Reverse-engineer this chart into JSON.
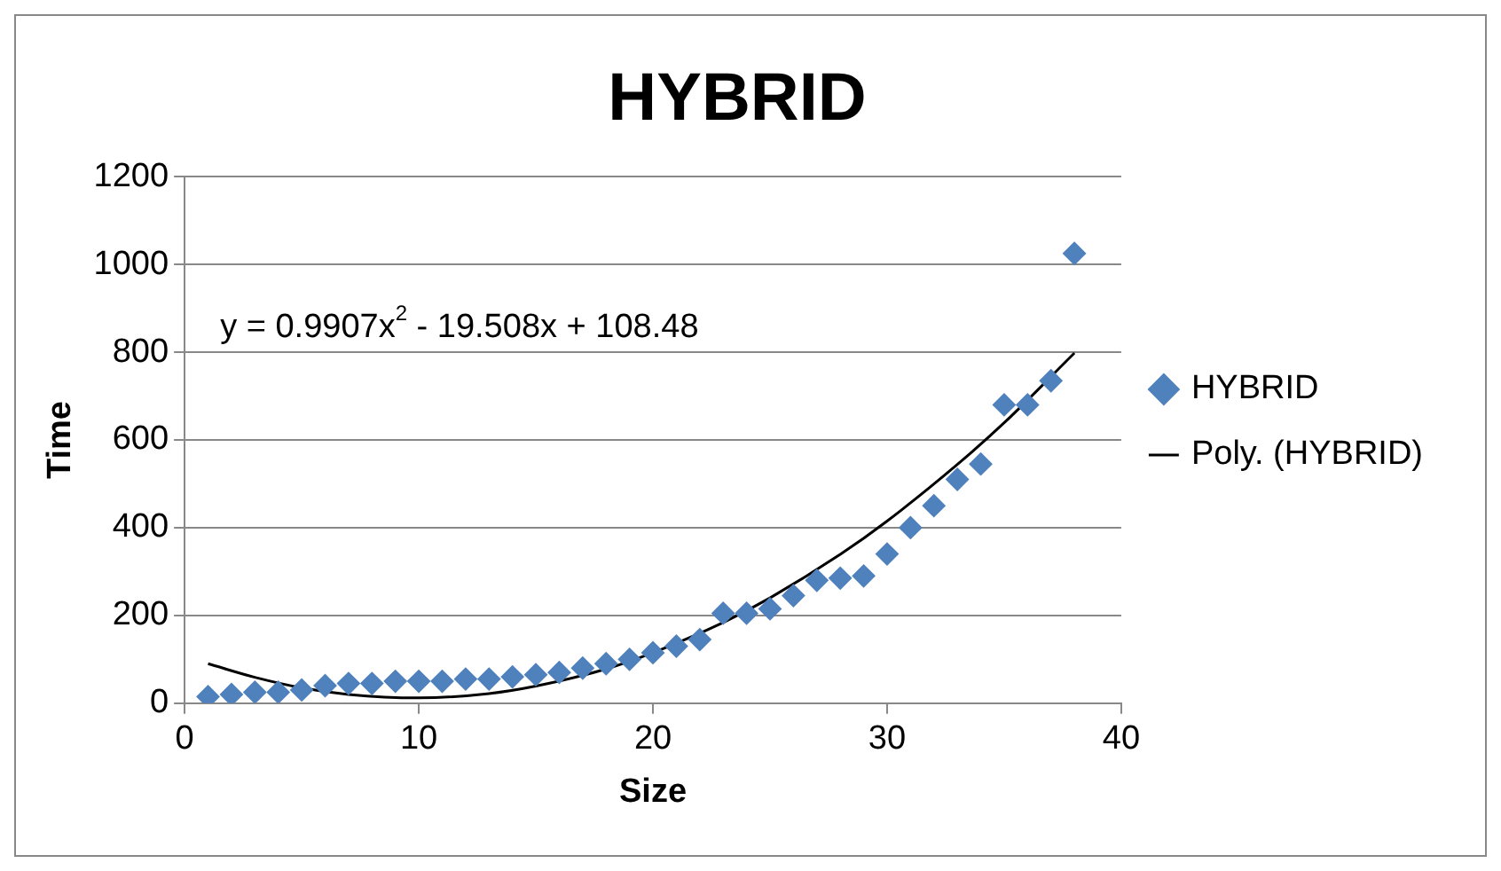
{
  "chart_data": {
    "type": "scatter",
    "title": "HYBRID",
    "xlabel": "Size",
    "ylabel": "Time",
    "xlim": [
      0,
      40
    ],
    "xticks": [
      0,
      10,
      20,
      30,
      40
    ],
    "ylim": [
      0,
      1200
    ],
    "yticks": [
      0,
      200,
      400,
      600,
      800,
      1000,
      1200
    ],
    "grid": "y",
    "legend": "right",
    "marker": "diamond",
    "annotations": [
      "y = 0.9907x$^{2}$ - 19.508x + 108.48"
    ],
    "series": [
      {
        "name": "HYBRID",
        "color": "#4f81bd",
        "x": [
          1,
          2,
          3,
          4,
          5,
          6,
          7,
          8,
          9,
          10,
          11,
          12,
          13,
          14,
          15,
          16,
          17,
          18,
          19,
          20,
          21,
          22,
          23,
          24,
          25,
          26,
          27,
          28,
          29,
          30,
          31,
          32,
          33,
          34,
          35,
          36,
          37,
          38
        ],
        "values": [
          15,
          20,
          25,
          25,
          30,
          40,
          45,
          45,
          50,
          50,
          50,
          55,
          55,
          60,
          65,
          70,
          80,
          90,
          100,
          115,
          130,
          145,
          205,
          205,
          215,
          245,
          280,
          285,
          290,
          340,
          400,
          450,
          510,
          545,
          680,
          680,
          735,
          1025
        ]
      },
      {
        "name": "Poly. (HYBRID)",
        "type": "line",
        "color": "#000000",
        "marker": "none",
        "x": [
          1,
          3,
          5,
          7,
          10,
          13,
          15,
          18,
          20,
          23,
          25,
          28,
          30,
          33,
          35,
          38
        ],
        "values": [
          90,
          59,
          35,
          20,
          12,
          22,
          39,
          78,
          115,
          184,
          240,
          339,
          415,
          544,
          639,
          798
        ]
      }
    ]
  }
}
